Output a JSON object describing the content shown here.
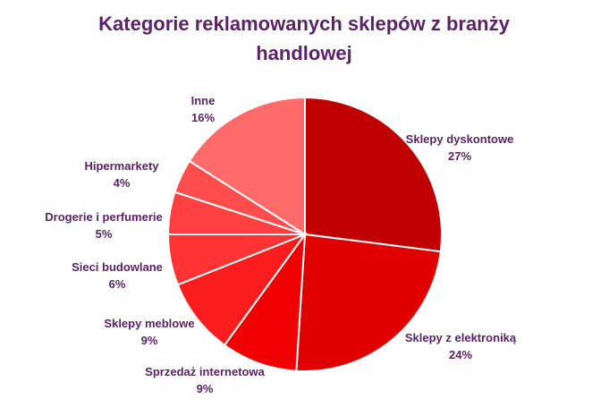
{
  "chart_data": {
    "type": "pie",
    "title": "Kategorie reklamowanych sklepów z branży handlowej",
    "start_position": "12 o'clock",
    "direction": "clockwise",
    "slices": [
      {
        "name": "Sklepy dyskontowe",
        "percent_label": "27%",
        "value": 27,
        "color": "#c00000"
      },
      {
        "name": "Sklepy z elektroniką",
        "percent_label": "24%",
        "value": 24,
        "color": "#e00000"
      },
      {
        "name": "Sprzedaż internetowa",
        "percent_label": "9%",
        "value": 9,
        "color": "#f00000"
      },
      {
        "name": "Sklepy meblowe",
        "percent_label": "9%",
        "value": 9,
        "color": "#fb1d1d"
      },
      {
        "name": "Sieci budowlane",
        "percent_label": "6%",
        "value": 6,
        "color": "#ff3333"
      },
      {
        "name": "Drogerie i perfumerie",
        "percent_label": "5%",
        "value": 5,
        "color": "#ff4040"
      },
      {
        "name": "Hipermarkety",
        "percent_label": "4%",
        "value": 4,
        "color": "#ff4d4d"
      },
      {
        "name": "Inne",
        "percent_label": "16%",
        "value": 16,
        "color": "#ff6b6b"
      }
    ]
  }
}
